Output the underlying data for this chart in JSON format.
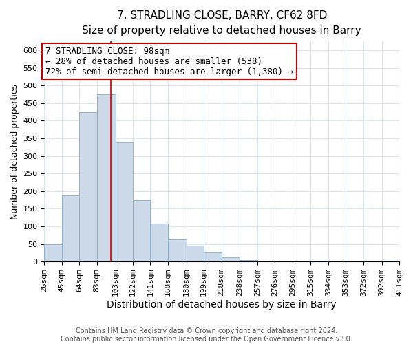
{
  "title": "7, STRADLING CLOSE, BARRY, CF62 8FD",
  "subtitle": "Size of property relative to detached houses in Barry",
  "xlabel": "Distribution of detached houses by size in Barry",
  "ylabel": "Number of detached properties",
  "bar_color": "#ccd9e8",
  "bar_edge_color": "#8aaac8",
  "vline_x": 98,
  "vline_color": "#cc0000",
  "annotation_text": "7 STRADLING CLOSE: 98sqm\n← 28% of detached houses are smaller (538)\n72% of semi-detached houses are larger (1,380) →",
  "annotation_box_color": "white",
  "annotation_box_edge": "#cc0000",
  "bin_edges": [
    26,
    45,
    64,
    83,
    103,
    122,
    141,
    160,
    180,
    199,
    218,
    238,
    257,
    276,
    295,
    315,
    334,
    353,
    372,
    392,
    411
  ],
  "bar_heights": [
    50,
    188,
    425,
    475,
    338,
    175,
    108,
    62,
    45,
    25,
    12,
    5,
    0,
    0,
    0,
    2,
    0,
    0,
    0,
    3
  ],
  "ylim": [
    0,
    625
  ],
  "yticks": [
    0,
    50,
    100,
    150,
    200,
    250,
    300,
    350,
    400,
    450,
    500,
    550,
    600
  ],
  "grid_color": "#dce8f0",
  "footer_text": "Contains HM Land Registry data © Crown copyright and database right 2024.\nContains public sector information licensed under the Open Government Licence v3.0.",
  "title_fontsize": 11,
  "subtitle_fontsize": 10,
  "xlabel_fontsize": 10,
  "ylabel_fontsize": 9,
  "tick_label_fontsize": 8,
  "footer_fontsize": 7,
  "annotation_fontsize": 9
}
